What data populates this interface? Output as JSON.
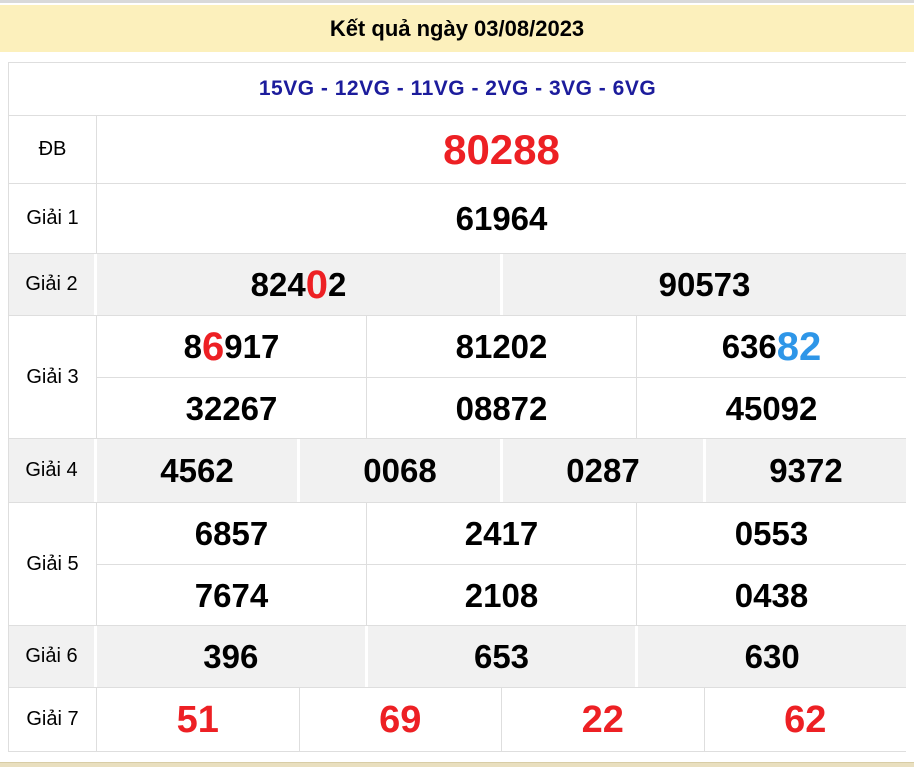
{
  "page": {
    "title": "Kết quả ngày 03/08/2023",
    "subtitle": "15VG - 12VG - 11VG - 2VG - 3VG - 6VG"
  },
  "colors": {
    "header_bg": "#fcf0bc",
    "navy": "#1c1c9c",
    "red": "#ed2024",
    "blue": "#2e96e8",
    "shade_row_bg": "#f1f1f1",
    "border": "#dedede",
    "text": "#000000",
    "top_strip": "#d9d9d9",
    "bottom_strip": "#e9dfbf"
  },
  "prize_table": {
    "rows": [
      {
        "key": "db",
        "label": "ĐB",
        "shade": false,
        "lines": [
          [
            {
              "parts": [
                {
                  "text": "80288",
                  "color": "red"
                }
              ]
            }
          ]
        ]
      },
      {
        "key": "g1",
        "label": "Giải 1",
        "shade": false,
        "lines": [
          [
            {
              "parts": [
                {
                  "text": "61964"
                }
              ]
            }
          ]
        ]
      },
      {
        "key": "g2",
        "label": "Giải 2",
        "shade": true,
        "lines": [
          [
            {
              "parts": [
                {
                  "text": "824"
                },
                {
                  "text": "0",
                  "color": "red",
                  "big": true
                },
                {
                  "text": "2"
                }
              ]
            },
            {
              "parts": [
                {
                  "text": "90573"
                }
              ]
            }
          ]
        ]
      },
      {
        "key": "g3",
        "label": "Giải 3",
        "shade": false,
        "lines": [
          [
            {
              "parts": [
                {
                  "text": "8"
                },
                {
                  "text": "6",
                  "color": "red",
                  "big": true
                },
                {
                  "text": "917"
                }
              ]
            },
            {
              "parts": [
                {
                  "text": "81202"
                }
              ]
            },
            {
              "parts": [
                {
                  "text": "636"
                },
                {
                  "text": "82",
                  "color": "blue",
                  "big": true
                }
              ]
            }
          ],
          [
            {
              "parts": [
                {
                  "text": "32267"
                }
              ]
            },
            {
              "parts": [
                {
                  "text": "08872"
                }
              ]
            },
            {
              "parts": [
                {
                  "text": "45092"
                }
              ]
            }
          ]
        ]
      },
      {
        "key": "g4",
        "label": "Giải 4",
        "shade": true,
        "lines": [
          [
            {
              "parts": [
                {
                  "text": "4562"
                }
              ]
            },
            {
              "parts": [
                {
                  "text": "0068"
                }
              ]
            },
            {
              "parts": [
                {
                  "text": "0287"
                }
              ]
            },
            {
              "parts": [
                {
                  "text": "9372"
                }
              ]
            }
          ]
        ]
      },
      {
        "key": "g5",
        "label": "Giải 5",
        "shade": false,
        "lines": [
          [
            {
              "parts": [
                {
                  "text": "6857"
                }
              ]
            },
            {
              "parts": [
                {
                  "text": "2417"
                }
              ]
            },
            {
              "parts": [
                {
                  "text": "0553"
                }
              ]
            }
          ],
          [
            {
              "parts": [
                {
                  "text": "7674"
                }
              ]
            },
            {
              "parts": [
                {
                  "text": "2108"
                }
              ]
            },
            {
              "parts": [
                {
                  "text": "0438"
                }
              ]
            }
          ]
        ]
      },
      {
        "key": "g6",
        "label": "Giải 6",
        "shade": true,
        "lines": [
          [
            {
              "parts": [
                {
                  "text": "396"
                }
              ]
            },
            {
              "parts": [
                {
                  "text": "653"
                }
              ]
            },
            {
              "parts": [
                {
                  "text": "630"
                }
              ]
            }
          ]
        ]
      },
      {
        "key": "g7",
        "label": "Giải 7",
        "shade": false,
        "lines": [
          [
            {
              "parts": [
                {
                  "text": "51",
                  "color": "red"
                }
              ]
            },
            {
              "parts": [
                {
                  "text": "69",
                  "color": "red"
                }
              ]
            },
            {
              "parts": [
                {
                  "text": "22",
                  "color": "red"
                }
              ]
            },
            {
              "parts": [
                {
                  "text": "62",
                  "color": "red"
                }
              ]
            }
          ]
        ]
      }
    ]
  }
}
